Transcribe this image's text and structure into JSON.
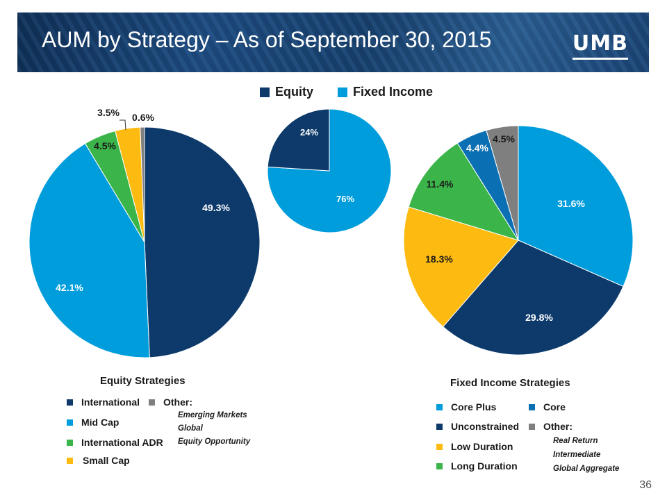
{
  "header": {
    "title": "AUM by Strategy – As of September 30, 2015",
    "logo_text": "UMB"
  },
  "top_legend": [
    {
      "label": "Equity",
      "color": "#0d3a6b"
    },
    {
      "label": "Fixed Income",
      "color": "#009ddc"
    }
  ],
  "equity_legend": {
    "title": "Equity Strategies",
    "items": [
      {
        "label": "International",
        "color": "#0d3a6b"
      },
      {
        "label": "Mid Cap",
        "color": "#009ddc"
      },
      {
        "label": "International ADR",
        "color": "#3bb54a"
      },
      {
        "label": "Small Cap",
        "color": "#fdbb12"
      },
      {
        "label": "Other:",
        "color": "#7f7f7f"
      }
    ],
    "other_subitems": [
      "Emerging Markets",
      "Global",
      "Equity Opportunity"
    ]
  },
  "fixed_legend": {
    "title": "Fixed Income Strategies",
    "items": [
      {
        "label": "Core Plus",
        "color": "#009ddc"
      },
      {
        "label": "Unconstrained",
        "color": "#0d3a6b"
      },
      {
        "label": "Low Duration",
        "color": "#fdbb12"
      },
      {
        "label": "Long Duration",
        "color": "#3bb54a"
      },
      {
        "label": "Core",
        "color": "#0b6fb3"
      },
      {
        "label": "Other:",
        "color": "#7f7f7f"
      }
    ],
    "other_subitems": [
      "Real Return",
      "Intermediate",
      "Global Aggregate"
    ]
  },
  "page_number": "36",
  "chart_data": [
    {
      "type": "pie",
      "slices": [
        {
          "label": "International",
          "value": 49.3,
          "display": "49.3%",
          "color": "#0d3a6b"
        },
        {
          "label": "Mid Cap",
          "value": 42.1,
          "display": "42.1%",
          "color": "#009ddc"
        },
        {
          "label": "International ADR",
          "value": 4.5,
          "display": "4.5%",
          "color": "#3bb54a"
        },
        {
          "label": "Small Cap",
          "value": 3.5,
          "display": "3.5%",
          "color": "#fdbb12"
        },
        {
          "label": "Other",
          "value": 0.6,
          "display": "0.6%",
          "color": "#7f7f7f"
        }
      ]
    },
    {
      "type": "pie",
      "slices": [
        {
          "label": "Fixed Income",
          "value": 76,
          "display": "76%",
          "color": "#009ddc"
        },
        {
          "label": "Equity",
          "value": 24,
          "display": "24%",
          "color": "#0d3a6b"
        }
      ]
    },
    {
      "type": "pie",
      "slices": [
        {
          "label": "Core Plus",
          "value": 31.6,
          "display": "31.6%",
          "color": "#009ddc"
        },
        {
          "label": "Unconstrained",
          "value": 29.8,
          "display": "29.8%",
          "color": "#0d3a6b"
        },
        {
          "label": "Low Duration",
          "value": 18.3,
          "display": "18.3%",
          "color": "#fdbb12"
        },
        {
          "label": "Long Duration",
          "value": 11.4,
          "display": "11.4%",
          "color": "#3bb54a"
        },
        {
          "label": "Core",
          "value": 4.4,
          "display": "4.4%",
          "color": "#0b6fb3"
        },
        {
          "label": "Other",
          "value": 4.5,
          "display": "4.5%",
          "color": "#7f7f7f"
        }
      ]
    }
  ]
}
